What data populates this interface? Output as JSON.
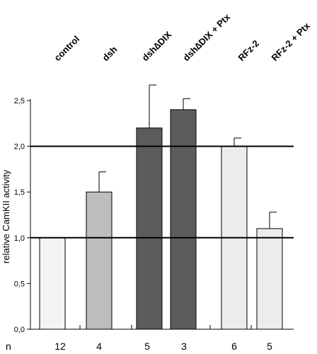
{
  "chart_data": {
    "type": "bar",
    "categories": [
      "control",
      "dsh",
      "dsh∆DIX",
      "dsh∆DIX + Ptx",
      "RFz-2",
      "RFz-2 + Ptx"
    ],
    "values": [
      1.0,
      1.5,
      2.2,
      2.4,
      2.0,
      1.1
    ],
    "error_upper": [
      1.0,
      1.72,
      2.67,
      2.52,
      2.09,
      1.28
    ],
    "bar_colors": [
      "#f4f4f4",
      "#bdbdbd",
      "#5c5c5c",
      "#5c5c5c",
      "#ececec",
      "#ececec"
    ],
    "n_label": "n",
    "n_values": [
      "12",
      "4",
      "5",
      "3",
      "6",
      "5"
    ],
    "ylabel": "relative CamKII activity",
    "xlabel": "",
    "ylim": [
      0,
      2.5
    ],
    "yticks": [
      0,
      0.5,
      1.0,
      1.5,
      2.0,
      2.5
    ],
    "ytick_labels": [
      "0,0",
      "0,5",
      "1,0",
      "1,5",
      "2,0",
      "2,5"
    ],
    "reference_lines": [
      1.0,
      2.0
    ],
    "grid": false,
    "legend": "none"
  }
}
